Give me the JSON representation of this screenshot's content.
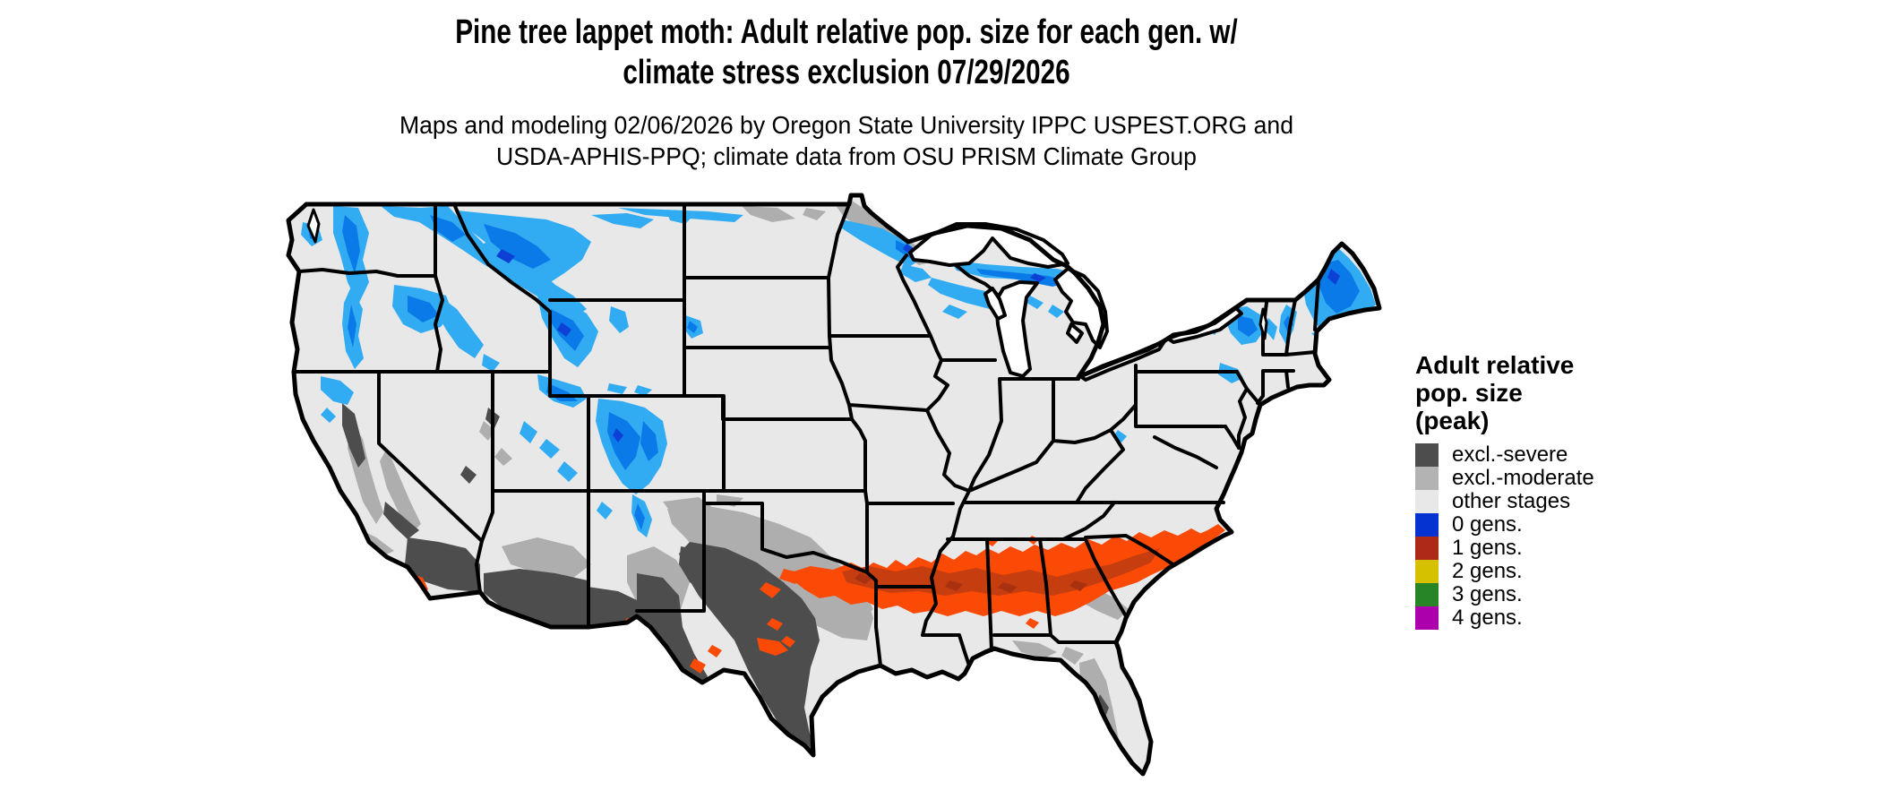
{
  "title": {
    "line1": "Pine tree lappet moth: Adult relative pop. size for each gen. w/",
    "line2": "climate stress exclusion 07/29/2026"
  },
  "subtitle": {
    "line1": "Maps and modeling 02/06/2026 by Oregon State University IPPC USPEST.ORG and",
    "line2": "USDA-APHIS-PPQ; climate data from OSU PRISM Climate Group"
  },
  "legend": {
    "title_lines": [
      "Adult relative",
      "pop. size",
      "(peak)"
    ],
    "items": [
      {
        "label": "excl.-severe",
        "color": "#4d4d4d"
      },
      {
        "label": "excl.-moderate",
        "color": "#b3b3b3"
      },
      {
        "label": "other stages",
        "color": "#e8e8e8"
      },
      {
        "label": "0 gens.",
        "color": "#0533d1"
      },
      {
        "label": "1 gens.",
        "color": "#ad2a17"
      },
      {
        "label": "2 gens.",
        "color": "#d6c100"
      },
      {
        "label": "3 gens.",
        "color": "#278427"
      },
      {
        "label": "4 gens.",
        "color": "#ab00ab"
      }
    ]
  },
  "map_colors": {
    "land_base": "#e8e8e8",
    "border": "#000000",
    "lake": "#ffffff",
    "excl_moderate": "#aeaeae",
    "excl_severe": "#4d4d4d",
    "gens0_light": "#31acf3",
    "gens0_mid": "#0b7ae9",
    "gens0_dark": "#0d40d4",
    "gens1_bright": "#fb4a05",
    "gens1_core": "#c63d10",
    "gens1_deep": "#a93110",
    "gens2_yellow": "#ffe000"
  }
}
